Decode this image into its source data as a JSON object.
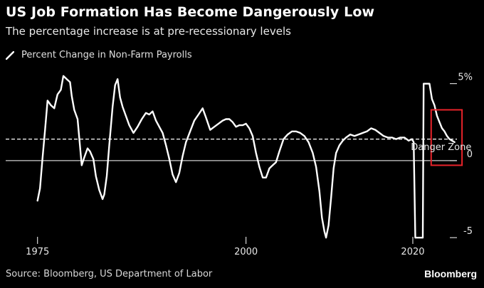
{
  "header": {
    "title": "US Job Formation Has Become Dangerously Low",
    "subtitle": "The percentage increase is at pre-recessionary levels"
  },
  "footer": {
    "source": "Source: Bloomberg, US Department of Labor",
    "brand": "Bloomberg"
  },
  "colors": {
    "background": "#000000",
    "line": "#ffffff",
    "danger_box": "#e8232a"
  },
  "chart_data": {
    "type": "line",
    "title": "US Job Formation Has Become Dangerously Low",
    "subtitle": "The percentage increase is at pre-recessionary levels",
    "xlim": [
      1970.5,
      2027
    ],
    "ylim": [
      -5.5,
      6
    ],
    "x_ticks": [
      {
        "value": 1975,
        "label": "1975"
      },
      {
        "value": 2000,
        "label": "2000"
      },
      {
        "value": 2020,
        "label": "2020"
      }
    ],
    "y_ticks": [
      {
        "value": 5,
        "label": "5%"
      },
      {
        "value": 0,
        "label": "0"
      },
      {
        "value": -5,
        "label": "-5"
      }
    ],
    "y_axis_side": "right",
    "grid": false,
    "legend_position": "top-left",
    "series": [
      {
        "name": "Percent Change in Non-Farm Payrolls",
        "color": "#ffffff",
        "points": [
          [
            1975.0,
            -2.6
          ],
          [
            1975.3,
            -1.8
          ],
          [
            1975.6,
            0.2
          ],
          [
            1975.9,
            2.0
          ],
          [
            1976.2,
            3.9
          ],
          [
            1976.6,
            3.6
          ],
          [
            1977.0,
            3.4
          ],
          [
            1977.4,
            4.3
          ],
          [
            1977.8,
            4.6
          ],
          [
            1978.1,
            5.5
          ],
          [
            1978.5,
            5.3
          ],
          [
            1978.9,
            5.1
          ],
          [
            1979.1,
            4.2
          ],
          [
            1979.4,
            3.3
          ],
          [
            1979.8,
            2.7
          ],
          [
            1980.0,
            1.5
          ],
          [
            1980.3,
            -0.3
          ],
          [
            1980.6,
            0.2
          ],
          [
            1981.0,
            0.8
          ],
          [
            1981.3,
            0.6
          ],
          [
            1981.7,
            0.1
          ],
          [
            1982.0,
            -1.0
          ],
          [
            1982.4,
            -1.9
          ],
          [
            1982.8,
            -2.5
          ],
          [
            1983.0,
            -2.2
          ],
          [
            1983.3,
            -1.0
          ],
          [
            1983.6,
            1.0
          ],
          [
            1984.0,
            3.5
          ],
          [
            1984.3,
            4.9
          ],
          [
            1984.6,
            5.3
          ],
          [
            1984.9,
            4.1
          ],
          [
            1985.2,
            3.5
          ],
          [
            1985.6,
            2.9
          ],
          [
            1986.0,
            2.3
          ],
          [
            1986.5,
            1.8
          ],
          [
            1987.0,
            2.2
          ],
          [
            1987.5,
            2.7
          ],
          [
            1988.0,
            3.1
          ],
          [
            1988.4,
            3.0
          ],
          [
            1988.8,
            3.2
          ],
          [
            1989.2,
            2.6
          ],
          [
            1989.6,
            2.2
          ],
          [
            1990.0,
            1.8
          ],
          [
            1990.4,
            1.0
          ],
          [
            1990.8,
            0.1
          ],
          [
            1991.2,
            -0.9
          ],
          [
            1991.6,
            -1.4
          ],
          [
            1992.0,
            -0.8
          ],
          [
            1992.4,
            0.3
          ],
          [
            1992.8,
            1.2
          ],
          [
            1993.3,
            1.9
          ],
          [
            1993.8,
            2.6
          ],
          [
            1994.3,
            3.0
          ],
          [
            1994.8,
            3.4
          ],
          [
            1995.2,
            2.8
          ],
          [
            1995.7,
            2.0
          ],
          [
            1996.2,
            2.2
          ],
          [
            1996.7,
            2.4
          ],
          [
            1997.2,
            2.6
          ],
          [
            1997.6,
            2.7
          ],
          [
            1998.0,
            2.7
          ],
          [
            1998.4,
            2.5
          ],
          [
            1998.8,
            2.2
          ],
          [
            1999.2,
            2.3
          ],
          [
            1999.6,
            2.3
          ],
          [
            2000.0,
            2.4
          ],
          [
            2000.4,
            2.1
          ],
          [
            2000.8,
            1.6
          ],
          [
            2001.2,
            0.5
          ],
          [
            2001.6,
            -0.4
          ],
          [
            2002.0,
            -1.1
          ],
          [
            2002.4,
            -1.1
          ],
          [
            2002.8,
            -0.5
          ],
          [
            2003.2,
            -0.3
          ],
          [
            2003.6,
            -0.1
          ],
          [
            2004.0,
            0.6
          ],
          [
            2004.5,
            1.4
          ],
          [
            2005.0,
            1.7
          ],
          [
            2005.5,
            1.9
          ],
          [
            2006.0,
            1.9
          ],
          [
            2006.5,
            1.8
          ],
          [
            2007.0,
            1.6
          ],
          [
            2007.5,
            1.2
          ],
          [
            2008.0,
            0.5
          ],
          [
            2008.4,
            -0.4
          ],
          [
            2008.8,
            -2.0
          ],
          [
            2009.1,
            -3.7
          ],
          [
            2009.4,
            -4.6
          ],
          [
            2009.6,
            -5.0
          ],
          [
            2009.9,
            -4.2
          ],
          [
            2010.2,
            -2.4
          ],
          [
            2010.5,
            -0.5
          ],
          [
            2010.8,
            0.5
          ],
          [
            2011.2,
            1.0
          ],
          [
            2011.6,
            1.3
          ],
          [
            2012.0,
            1.5
          ],
          [
            2012.5,
            1.7
          ],
          [
            2013.0,
            1.6
          ],
          [
            2013.5,
            1.7
          ],
          [
            2014.0,
            1.8
          ],
          [
            2014.5,
            1.9
          ],
          [
            2015.0,
            2.1
          ],
          [
            2015.5,
            2.0
          ],
          [
            2016.0,
            1.8
          ],
          [
            2016.5,
            1.6
          ],
          [
            2017.0,
            1.5
          ],
          [
            2017.5,
            1.5
          ],
          [
            2018.0,
            1.4
          ],
          [
            2018.5,
            1.5
          ],
          [
            2019.0,
            1.5
          ],
          [
            2019.5,
            1.3
          ],
          [
            2019.9,
            1.4
          ],
          [
            2020.1,
            1.2
          ],
          [
            2020.3,
            -5.0
          ],
          [
            2021.2,
            -5.0
          ],
          [
            2021.3,
            5.0
          ],
          [
            2022.0,
            5.0
          ],
          [
            2022.3,
            4.0
          ],
          [
            2022.6,
            3.6
          ],
          [
            2022.9,
            2.9
          ],
          [
            2023.2,
            2.5
          ],
          [
            2023.5,
            2.1
          ],
          [
            2023.8,
            1.9
          ],
          [
            2024.1,
            1.6
          ],
          [
            2024.4,
            1.4
          ],
          [
            2024.7,
            1.3
          ],
          [
            2025.0,
            1.2
          ]
        ]
      }
    ],
    "reference_line": {
      "y": 1.4,
      "style": "dashed"
    },
    "zero_line": {
      "y": 0
    },
    "annotations": [
      {
        "text": "Danger Zone",
        "x": 2023.4,
        "y": 0.7
      }
    ],
    "highlight_box": {
      "x_range": [
        2022.2,
        2025.9
      ],
      "y_range": [
        -0.3,
        3.3
      ],
      "color": "#e8232a"
    }
  }
}
